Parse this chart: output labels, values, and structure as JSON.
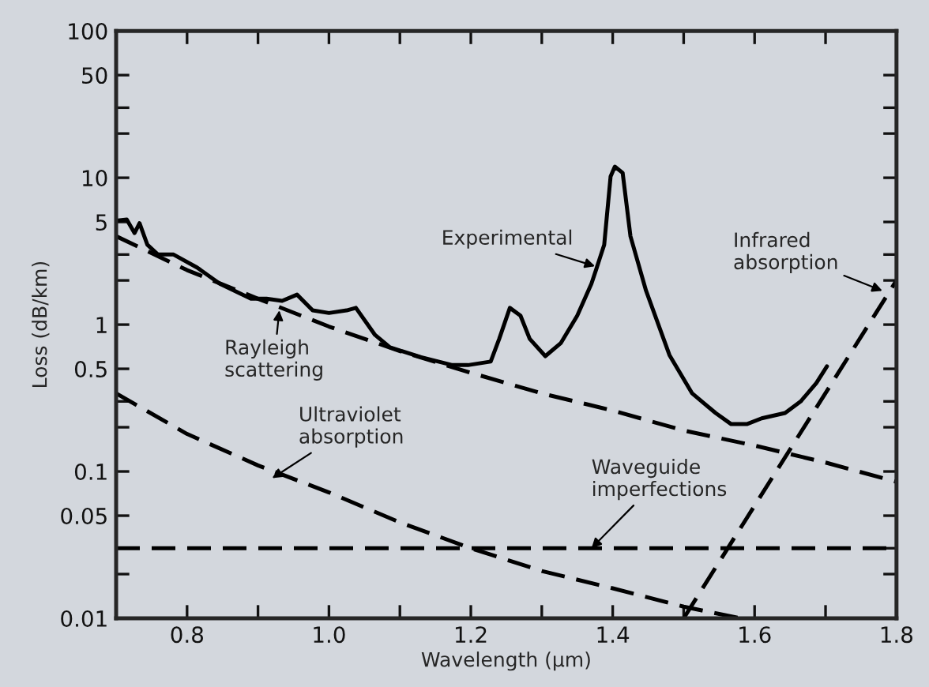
{
  "chart_data": {
    "type": "line",
    "xlabel": "Wavelength (µm)",
    "ylabel": "Loss (dB/km)",
    "log": "y",
    "xlim": [
      0.7,
      1.8
    ],
    "ylim": [
      0.01,
      100
    ],
    "xticks": [
      0.8,
      {
        "value": 0.9,
        "label": null
      },
      {
        "value": 1.0,
        "label": "1.0"
      },
      {
        "value": 1.1,
        "label": null
      },
      1.2,
      {
        "value": 1.3,
        "label": null
      },
      1.4,
      {
        "value": 1.5,
        "label": null
      },
      1.6,
      {
        "value": 1.7,
        "label": null
      },
      1.8
    ],
    "yticks": [
      0.01,
      {
        "value": 0.02,
        "label": null
      },
      {
        "value": 0.03,
        "label": null
      },
      0.05,
      0.1,
      {
        "value": 0.2,
        "label": null
      },
      {
        "value": 0.3,
        "label": null
      },
      0.5,
      1,
      {
        "value": 2,
        "label": null
      },
      {
        "value": 3,
        "label": null
      },
      5,
      10,
      {
        "value": 20,
        "label": null
      },
      {
        "value": 30,
        "label": null
      },
      50,
      100
    ],
    "grid": false,
    "marker": "none",
    "series": [
      {
        "color": "#000000",
        "line_style": "solid",
        "x": [
          0.7,
          0.715,
          0.726,
          0.733,
          0.744,
          0.759,
          0.781,
          0.814,
          0.846,
          0.89,
          0.912,
          0.934,
          0.955,
          0.977,
          1.0,
          1.025,
          1.038,
          1.065,
          1.086,
          1.13,
          1.174,
          1.196,
          1.228,
          1.24,
          1.255,
          1.27,
          1.283,
          1.305,
          1.327,
          1.35,
          1.37,
          1.377,
          1.388,
          1.397,
          1.403,
          1.414,
          1.425,
          1.447,
          1.48,
          1.512,
          1.545,
          1.567,
          1.589,
          1.61,
          1.643,
          1.665,
          1.687,
          1.702
        ],
        "values": [
          5.1,
          5.2,
          4.2,
          4.9,
          3.5,
          3.0,
          3.0,
          2.45,
          1.9,
          1.5,
          1.5,
          1.45,
          1.6,
          1.25,
          1.2,
          1.25,
          1.3,
          0.85,
          0.7,
          0.6,
          0.53,
          0.53,
          0.56,
          0.8,
          1.3,
          1.15,
          0.8,
          0.61,
          0.75,
          1.15,
          1.9,
          2.4,
          3.5,
          10.2,
          11.9,
          10.8,
          4.0,
          1.7,
          0.62,
          0.34,
          0.25,
          0.21,
          0.21,
          0.23,
          0.25,
          0.3,
          0.4,
          0.52
        ]
      },
      {
        "color": "#000000",
        "line_style": "dashed",
        "x": [
          0.7,
          0.8,
          0.9,
          1.0,
          1.1,
          1.2,
          1.3,
          1.4,
          1.5,
          1.6,
          1.7,
          1.8
        ],
        "values": [
          4.0,
          2.35,
          1.5,
          0.97,
          0.66,
          0.47,
          0.34,
          0.26,
          0.19,
          0.15,
          0.115,
          0.085
        ]
      },
      {
        "color": "#000000",
        "line_style": "dashed",
        "x": [
          0.7,
          0.8,
          0.9,
          1.0,
          1.1,
          1.2,
          1.3,
          1.4,
          1.5,
          1.58
        ],
        "values": [
          0.34,
          0.18,
          0.11,
          0.072,
          0.045,
          0.03,
          0.021,
          0.016,
          0.012,
          0.01
        ]
      },
      {
        "color": "#000000",
        "line_style": "dashed",
        "x": [
          0.7,
          1.8
        ],
        "values": [
          0.03,
          0.03
        ]
      },
      {
        "color": "#000000",
        "line_style": "dashed",
        "x": [
          1.5,
          1.8
        ],
        "values": [
          0.01,
          2.0
        ]
      }
    ],
    "annotations": [
      {
        "text": "Experimental",
        "x": 1.375,
        "y": 2.5
      },
      {
        "text": "Rayleigh\nscattering",
        "x": 0.93,
        "y": 1.25
      },
      {
        "text": "Ultraviolet\nabsorption",
        "x": 0.92,
        "y": 0.09
      },
      {
        "text": "Waveguide\nimperfections",
        "x": 1.37,
        "y": 0.03
      },
      {
        "text": "Infrared\nabsorption",
        "x": 1.78,
        "y": 1.7
      }
    ]
  }
}
